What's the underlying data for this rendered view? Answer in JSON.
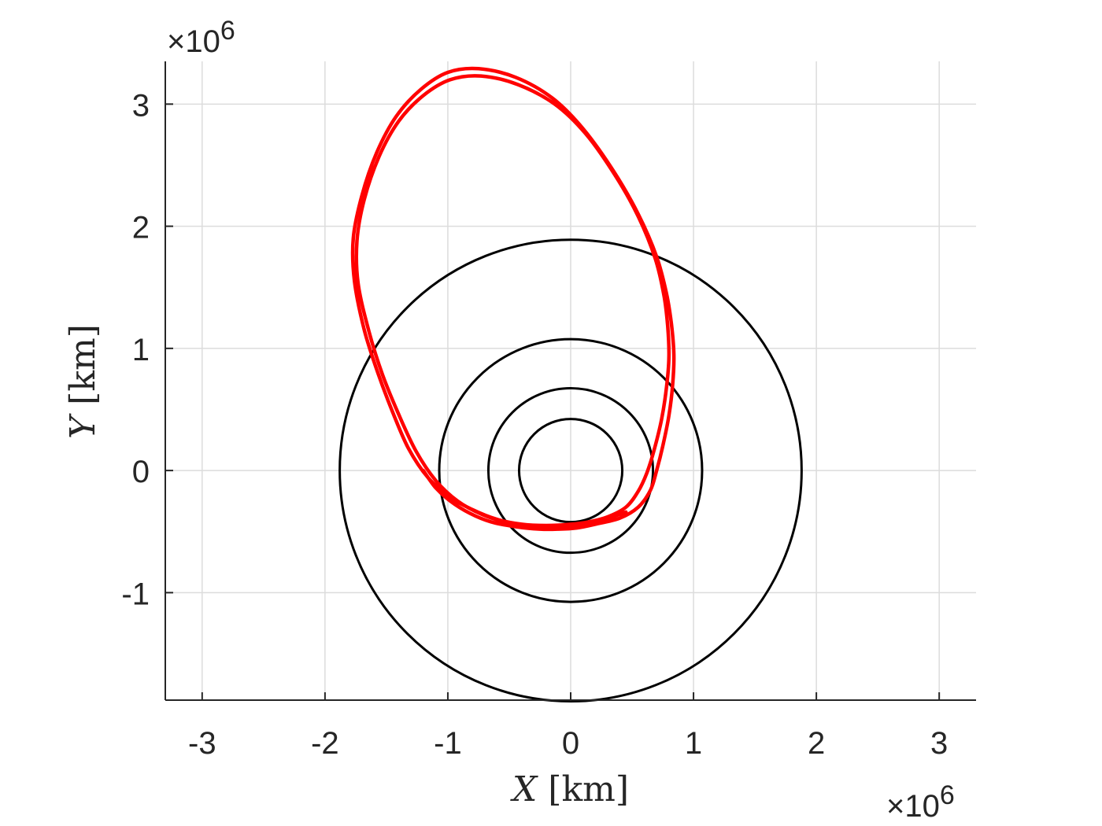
{
  "chart_data": {
    "type": "line",
    "title": "",
    "xlabel": {
      "var": "X",
      "unit": "[km]"
    },
    "ylabel": {
      "var": "Y",
      "unit": "[km]"
    },
    "x_multiplier": {
      "prefix": "×10",
      "power": "6"
    },
    "y_multiplier": {
      "prefix": "×10",
      "power": "6"
    },
    "xlim": [
      -3.3,
      3.3
    ],
    "ylim": [
      -1.88,
      3.35
    ],
    "xticks": [
      -3,
      -2,
      -1,
      0,
      1,
      2,
      3
    ],
    "xtick_labels": [
      "-3",
      "-2",
      "-1",
      "0",
      "1",
      "2",
      "3"
    ],
    "yticks": [
      -1,
      0,
      1,
      2,
      3
    ],
    "ytick_labels": [
      "-1",
      "0",
      "1",
      "2",
      "3"
    ],
    "grid": true,
    "legend": "none",
    "circles": [
      {
        "center": [
          0,
          0
        ],
        "radius": 0.42,
        "color": "#000000"
      },
      {
        "center": [
          0,
          0
        ],
        "radius": 0.67,
        "color": "#000000"
      },
      {
        "center": [
          0,
          0
        ],
        "radius": 1.07,
        "color": "#000000"
      },
      {
        "center": [
          0,
          0
        ],
        "radius": 1.88,
        "color": "#000000"
      }
    ],
    "trajectory": {
      "color": "#ff0000",
      "points": [
        [
          -1.2,
          0.0
        ],
        [
          -1.1,
          -0.14
        ],
        [
          -0.98,
          -0.25
        ],
        [
          -0.82,
          -0.35
        ],
        [
          -0.65,
          -0.42
        ],
        [
          -0.45,
          -0.46
        ],
        [
          -0.25,
          -0.48
        ],
        [
          -0.1,
          -0.48
        ],
        [
          0.05,
          -0.47
        ],
        [
          0.2,
          -0.44
        ],
        [
          0.4,
          -0.39
        ],
        [
          0.55,
          -0.3
        ],
        [
          0.65,
          -0.16
        ],
        [
          0.7,
          0.0
        ],
        [
          0.75,
          0.2
        ],
        [
          0.8,
          0.45
        ],
        [
          0.83,
          0.7
        ],
        [
          0.84,
          0.95
        ],
        [
          0.82,
          1.2
        ],
        [
          0.78,
          1.45
        ],
        [
          0.7,
          1.75
        ],
        [
          0.55,
          2.1
        ],
        [
          0.35,
          2.45
        ],
        [
          0.1,
          2.8
        ],
        [
          -0.15,
          3.05
        ],
        [
          -0.45,
          3.22
        ],
        [
          -0.75,
          3.29
        ],
        [
          -1.0,
          3.26
        ],
        [
          -1.22,
          3.12
        ],
        [
          -1.42,
          2.9
        ],
        [
          -1.58,
          2.6
        ],
        [
          -1.7,
          2.25
        ],
        [
          -1.77,
          1.9
        ],
        [
          -1.76,
          1.55
        ],
        [
          -1.68,
          1.15
        ],
        [
          -1.57,
          0.8
        ],
        [
          -1.45,
          0.48
        ],
        [
          -1.32,
          0.18
        ],
        [
          -1.16,
          -0.06
        ],
        [
          -0.98,
          -0.22
        ],
        [
          -0.8,
          -0.32
        ],
        [
          -0.6,
          -0.4
        ],
        [
          -0.4,
          -0.44
        ],
        [
          -0.2,
          -0.45
        ],
        [
          0.0,
          -0.44
        ],
        [
          0.15,
          -0.42
        ],
        [
          0.3,
          -0.38
        ],
        [
          0.45,
          -0.3
        ],
        [
          0.55,
          -0.17
        ],
        [
          0.62,
          -0.02
        ],
        [
          0.68,
          0.17
        ],
        [
          0.74,
          0.42
        ],
        [
          0.78,
          0.68
        ],
        [
          0.8,
          0.93
        ],
        [
          0.79,
          1.18
        ],
        [
          0.76,
          1.43
        ],
        [
          0.69,
          1.73
        ],
        [
          0.55,
          2.08
        ],
        [
          0.36,
          2.42
        ],
        [
          0.12,
          2.76
        ],
        [
          -0.13,
          3.0
        ],
        [
          -0.43,
          3.16
        ],
        [
          -0.73,
          3.23
        ],
        [
          -0.98,
          3.2
        ],
        [
          -1.2,
          3.07
        ],
        [
          -1.4,
          2.86
        ],
        [
          -1.56,
          2.57
        ],
        [
          -1.68,
          2.22
        ],
        [
          -1.74,
          1.88
        ],
        [
          -1.73,
          1.53
        ],
        [
          -1.64,
          1.13
        ],
        [
          -1.53,
          0.78
        ],
        [
          -1.4,
          0.46
        ],
        [
          -1.26,
          0.16
        ],
        [
          -1.1,
          -0.08
        ],
        [
          -0.92,
          -0.25
        ],
        [
          -0.72,
          -0.36
        ],
        [
          -0.5,
          -0.43
        ],
        [
          -0.3,
          -0.46
        ],
        [
          -0.1,
          -0.46
        ],
        [
          0.1,
          -0.44
        ],
        [
          0.28,
          -0.4
        ],
        [
          0.45,
          -0.34
        ]
      ]
    }
  }
}
